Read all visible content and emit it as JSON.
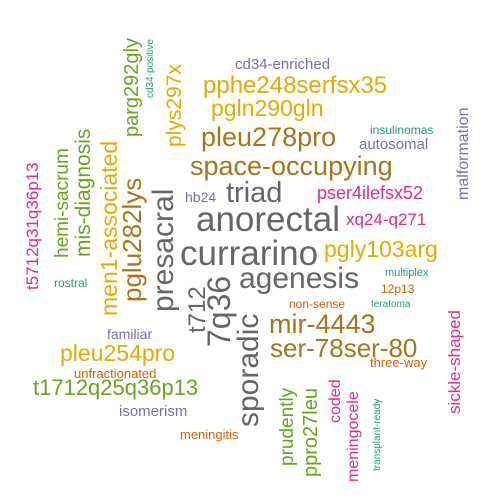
{
  "colors": {
    "gray": "#666666",
    "brown": "#a6761d",
    "gold": "#e6ab02",
    "green": "#66a61e",
    "pink": "#e7298a",
    "purple": "#7570b3",
    "orange": "#d95f02",
    "teal": "#1b9e77"
  },
  "words": {
    "currarino": "currarino",
    "anorectal": "anorectal",
    "agenesis": "agenesis",
    "presacral": "presacral",
    "t7q36": "7q36",
    "sporadic": "sporadic",
    "triad": "triad",
    "t712": "t712",
    "space_occupying": "space-occupying",
    "pleu278pro": "pleu278pro",
    "mir_4443": "mir-4443",
    "ser_78ser_80": "ser-78ser-80",
    "pglu282lys": "pglu282lys",
    "pphe248serfsx35": "pphe248serfsx35",
    "pgln290gln": "pgln290gln",
    "pgly103arg": "pgly103arg",
    "men1_associated": "men1-associated",
    "pleu254pro": "pleu254pro",
    "plys297x": "plys297x",
    "parg292gly": "parg292gly",
    "mis_diagnosis": "mis-diagnosis",
    "hemi_sacrum": "hemi-sacrum",
    "t1712q25q36p13": "t1712q25q36p13",
    "prudently": "prudently",
    "ppro27leu": "ppro27leu",
    "t5712q31q36p13": "t5712q31q36p13",
    "pser4ilefsx52": "pser4ilefsx52",
    "xq24_q271": "xq24-q271",
    "meningocele": "meningocele",
    "coded": "coded",
    "sickle_shaped": "sickle-shaped",
    "cd34_enriched": "cd34-enriched",
    "autosomal": "autosomal",
    "malformation": "malformation",
    "hb24": "hb24",
    "familiar": "familiar",
    "isomerism": "isomerism",
    "unfractionated": "unfractionated",
    "meningitis": "meningitis",
    "non_sense": "non-sense",
    "p12p13": "12p13",
    "three_way": "three-way",
    "insulinomas": "insulinomas",
    "multiplex": "multiplex",
    "teratoma": "teratoma",
    "rostral": "rostral",
    "cd34_positive": "cd34-positive",
    "transplant_ready": "transplant-ready"
  }
}
